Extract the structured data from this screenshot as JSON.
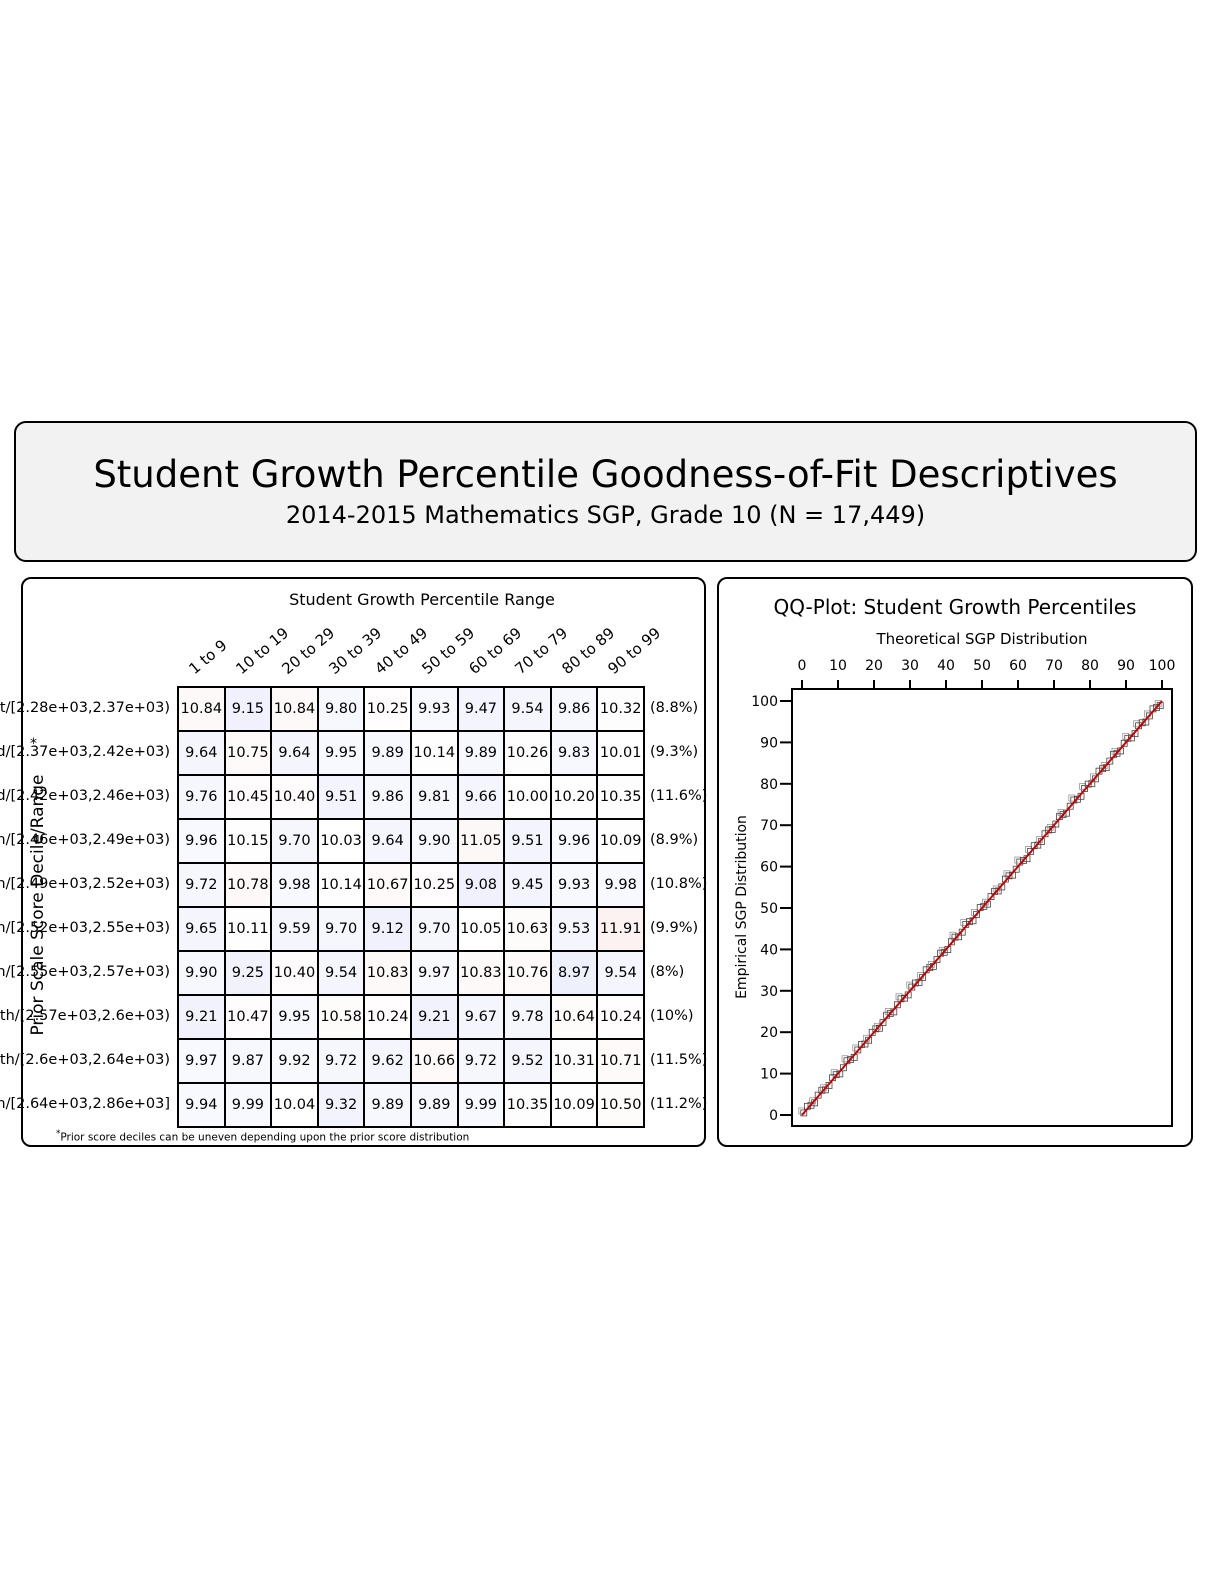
{
  "header": {
    "title": "Student Growth Percentile Goodness-of-Fit Descriptives",
    "subtitle": "2014-2015 Mathematics SGP, Grade 10 (N = 17,449)"
  },
  "chart_data": [
    {
      "type": "table",
      "title": "Student Growth Percentile Range",
      "ylabel": "Prior Scale Score Decile/Range",
      "ylabel_marker": "*",
      "columns": [
        "1 to 9",
        "10 to 19",
        "20 to 29",
        "30 to 39",
        "40 to 49",
        "50 to 59",
        "60 to 69",
        "70 to 79",
        "80 to 89",
        "90 to 99"
      ],
      "rows": [
        {
          "label": "t/[2.28e+03,2.37e+03)",
          "pct": "(8.8%)",
          "values": [
            "10.84",
            "9.15",
            "10.84",
            "9.80",
            "10.25",
            "9.93",
            "9.47",
            "9.54",
            "9.86",
            "10.32"
          ]
        },
        {
          "label": "d/[2.37e+03,2.42e+03)",
          "pct": "(9.3%)",
          "values": [
            "9.64",
            "10.75",
            "9.64",
            "9.95",
            "9.89",
            "10.14",
            "9.89",
            "10.26",
            "9.83",
            "10.01"
          ]
        },
        {
          "label": "d/[2.42e+03,2.46e+03)",
          "pct": "(11.6%)",
          "values": [
            "9.76",
            "10.45",
            "10.40",
            "9.51",
            "9.86",
            "9.81",
            "9.66",
            "10.00",
            "10.20",
            "10.35"
          ]
        },
        {
          "label": "h/[2.46e+03,2.49e+03)",
          "pct": "(8.9%)",
          "values": [
            "9.96",
            "10.15",
            "9.70",
            "10.03",
            "9.64",
            "9.90",
            "11.05",
            "9.51",
            "9.96",
            "10.09"
          ]
        },
        {
          "label": "h/[2.49e+03,2.52e+03)",
          "pct": "(10.8%)",
          "values": [
            "9.72",
            "10.78",
            "9.98",
            "10.14",
            "10.67",
            "10.25",
            "9.08",
            "9.45",
            "9.93",
            "9.98"
          ]
        },
        {
          "label": "h/[2.52e+03,2.55e+03)",
          "pct": "(9.9%)",
          "values": [
            "9.65",
            "10.11",
            "9.59",
            "9.70",
            "9.12",
            "9.70",
            "10.05",
            "10.63",
            "9.53",
            "11.91"
          ]
        },
        {
          "label": "h/[2.55e+03,2.57e+03)",
          "pct": "(8%)",
          "values": [
            "9.90",
            "9.25",
            "10.40",
            "9.54",
            "10.83",
            "9.97",
            "10.83",
            "10.76",
            "8.97",
            "9.54"
          ]
        },
        {
          "label": "th/[2.57e+03,2.6e+03)",
          "pct": "(10%)",
          "values": [
            "9.21",
            "10.47",
            "9.95",
            "10.58",
            "10.24",
            "9.21",
            "9.67",
            "9.78",
            "10.64",
            "10.24"
          ]
        },
        {
          "label": "th/[2.6e+03,2.64e+03)",
          "pct": "(11.5%)",
          "values": [
            "9.97",
            "9.87",
            "9.92",
            "9.72",
            "9.62",
            "10.66",
            "9.72",
            "9.52",
            "10.31",
            "10.71"
          ]
        },
        {
          "label": "h/[2.64e+03,2.86e+03]",
          "pct": "(11.2%)",
          "values": [
            "9.94",
            "9.99",
            "10.04",
            "9.32",
            "9.89",
            "9.89",
            "9.99",
            "10.35",
            "10.09",
            "10.50"
          ]
        }
      ],
      "footnote_marker": "*",
      "footnote": "Prior score deciles can be uneven depending upon the prior score distribution"
    },
    {
      "type": "scatter",
      "title": "QQ-Plot: Student Growth Percentiles",
      "xlabel": "Theoretical SGP Distribution",
      "ylabel": "Empirical SGP Distribution",
      "xlim": [
        0,
        100
      ],
      "ylim": [
        0,
        100
      ],
      "xticks": [
        0,
        10,
        20,
        30,
        40,
        50,
        60,
        70,
        80,
        90,
        100
      ],
      "yticks": [
        0,
        10,
        20,
        30,
        40,
        50,
        60,
        70,
        80,
        90,
        100
      ],
      "reference_line": {
        "from": [
          0,
          0
        ],
        "to": [
          100,
          100
        ],
        "color": "#cc0000"
      },
      "point_color": "#000000"
    }
  ]
}
